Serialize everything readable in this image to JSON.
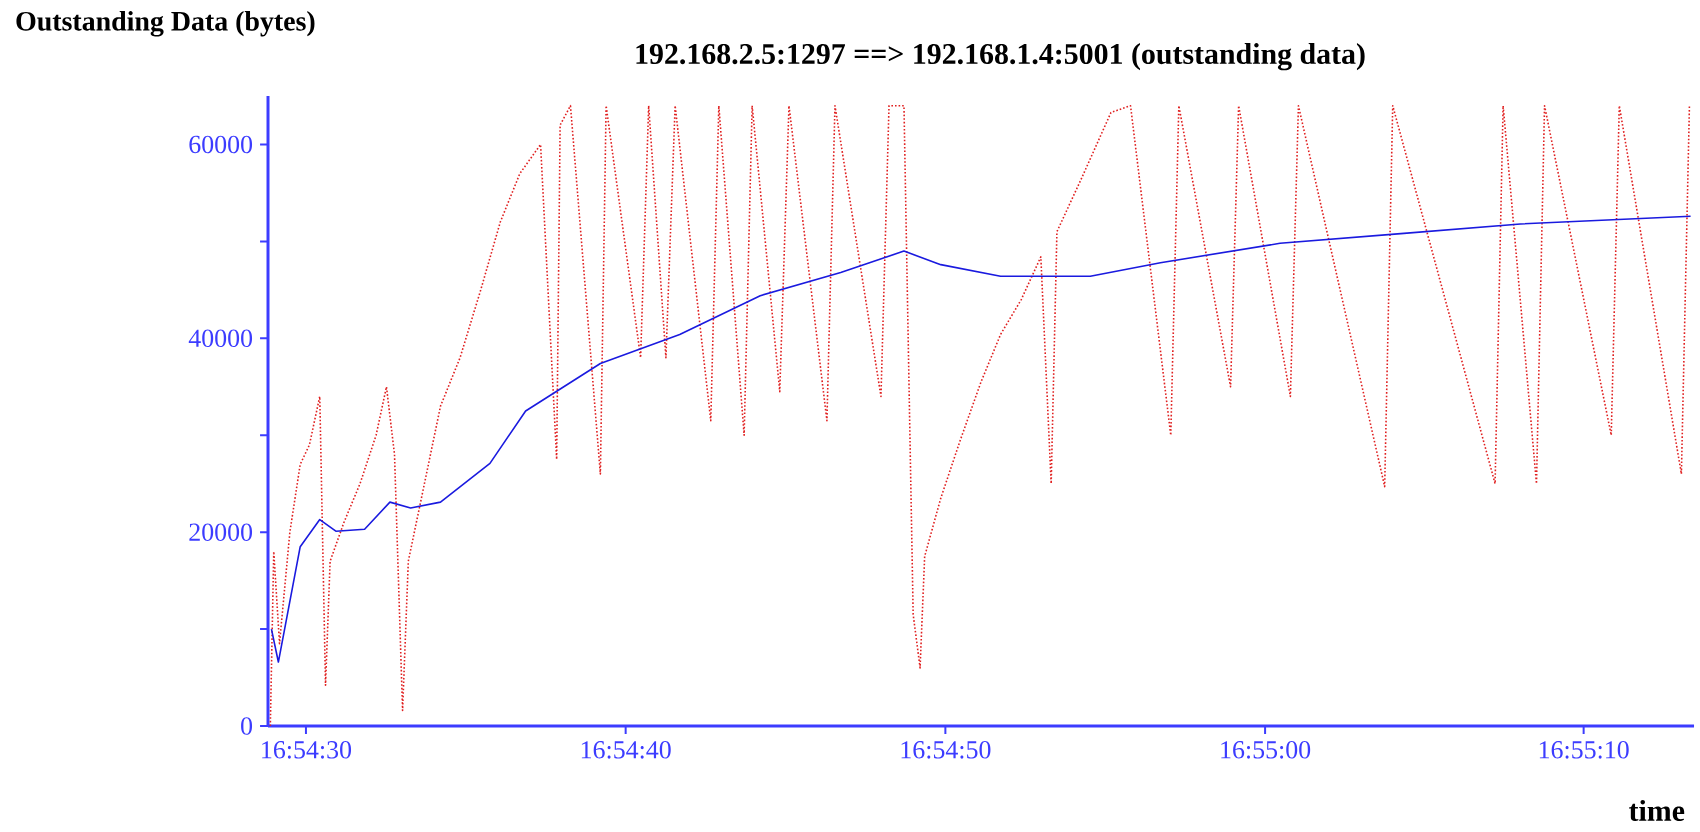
{
  "chart_data": {
    "type": "line",
    "title": "192.168.2.5:1297  ==>  192.168.1.4:5001 (outstanding data)",
    "ylabel": "Outstanding Data (bytes)",
    "xlabel": "time",
    "xlim": [
      16.908,
      16.9204
    ],
    "ylim": [
      0,
      65000
    ],
    "xticks": [
      {
        "value": 16.90833,
        "label": "16:54:30"
      },
      {
        "value": 16.91111,
        "label": "16:54:40"
      },
      {
        "value": 16.91389,
        "label": "16:54:50"
      },
      {
        "value": 16.91667,
        "label": "16:55:00"
      },
      {
        "value": 16.91944,
        "label": "16:55:10"
      }
    ],
    "yticks": [
      0,
      {
        "value": 10000,
        "label": null
      },
      20000,
      {
        "value": 30000,
        "label": null
      },
      40000,
      {
        "value": 50000,
        "label": null
      },
      60000
    ],
    "series": [
      {
        "color": "#e02020",
        "line_style": "dotted",
        "x": [
          16.90802,
          16.90805,
          16.9081,
          16.90819,
          16.90828,
          16.90836,
          16.90845,
          16.9085,
          16.90854,
          16.90866,
          16.9088,
          16.90894,
          16.90903,
          16.9091,
          16.90917,
          16.90922,
          16.90936,
          16.9095,
          16.90967,
          16.90985,
          16.91002,
          16.91019,
          16.91037,
          16.91051,
          16.91054,
          16.91063,
          16.91089,
          16.91094,
          16.91124,
          16.91131,
          16.91146,
          16.91154,
          16.91185,
          16.91192,
          16.91214,
          16.91221,
          16.91245,
          16.91253,
          16.91286,
          16.91293,
          16.91333,
          16.9134,
          16.91353,
          16.91361,
          16.91367,
          16.91371,
          16.91385,
          16.91402,
          16.9142,
          16.91437,
          16.91455,
          16.91472,
          16.91481,
          16.91486,
          16.91507,
          16.91533,
          16.9155,
          16.91585,
          16.91592,
          16.91637,
          16.91644,
          16.91689,
          16.91696,
          16.91771,
          16.91778,
          16.91867,
          16.91874,
          16.91903,
          16.9191,
          16.91968,
          16.91975,
          16.92029,
          16.92036
        ],
        "values": [
          0,
          18000,
          8500,
          20000,
          27000,
          29000,
          34000,
          4200,
          17000,
          21000,
          25000,
          30000,
          35000,
          28000,
          1600,
          17000,
          25000,
          33000,
          38000,
          45000,
          52000,
          57000,
          60000,
          27500,
          62000,
          64000,
          26000,
          64000,
          38000,
          64000,
          38000,
          64000,
          31500,
          64000,
          30000,
          64000,
          34500,
          64000,
          31500,
          64000,
          34000,
          64000,
          64000,
          11500,
          6000,
          17500,
          23500,
          29500,
          35500,
          40400,
          44000,
          48400,
          25000,
          51000,
          56400,
          63300,
          64000,
          30000,
          64000,
          35000,
          64000,
          34000,
          64000,
          24700,
          64000,
          25000,
          64000,
          25000,
          64000,
          30000,
          64000,
          26000,
          64000
        ]
      },
      {
        "color": "#1a1adf",
        "line_style": "solid",
        "x": [
          16.90803,
          16.90809,
          16.90828,
          16.90845,
          16.90859,
          16.90884,
          16.90906,
          16.90924,
          16.9095,
          16.90993,
          16.91024,
          16.91089,
          16.91158,
          16.91228,
          16.91298,
          16.91353,
          16.91385,
          16.91437,
          16.91515,
          16.91576,
          16.9168,
          16.91785,
          16.91889,
          16.92037
        ],
        "values": [
          10000,
          6600,
          18500,
          21300,
          20100,
          20300,
          23100,
          22500,
          23100,
          27100,
          32500,
          37400,
          40400,
          44400,
          46800,
          49000,
          47600,
          46400,
          46400,
          47800,
          49800,
          50800,
          51800,
          52600
        ]
      }
    ]
  }
}
